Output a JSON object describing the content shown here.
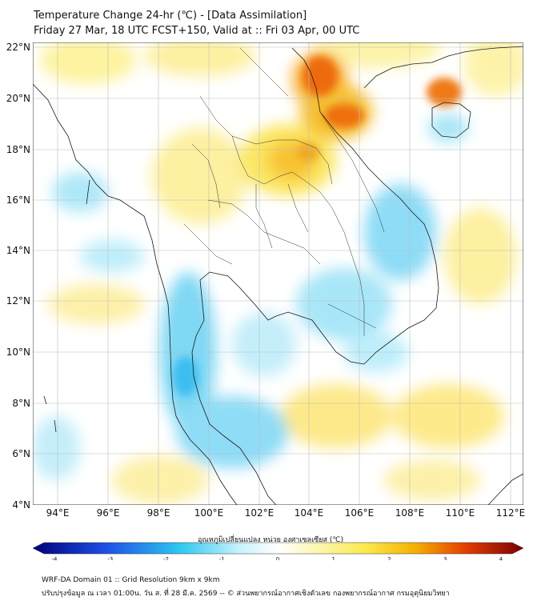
{
  "title": {
    "line1": "Temperature Change 24-hr (℃) - [Data Assimilation]",
    "line2": "Friday 27 Mar, 18 UTC FCST+150, Valid at :: Fri 03 Apr, 00 UTC"
  },
  "map": {
    "lat_labels": [
      "22°N",
      "20°N",
      "18°N",
      "16°N",
      "14°N",
      "12°N",
      "10°N",
      "8°N",
      "6°N",
      "4°N"
    ],
    "lon_labels": [
      "94°E",
      "96°E",
      "98°E",
      "100°E",
      "102°E",
      "104°E",
      "106°E",
      "108°E",
      "110°E",
      "112°E"
    ],
    "lat_range": [
      4,
      22.3
    ],
    "lon_range": [
      93,
      112.6
    ],
    "grid": true
  },
  "colorbar": {
    "title": "อุณหภูมิเปลี่ยนแปลง หน่วย องศาเซลเซียส (℃)",
    "ticks": [
      "-4",
      "-3",
      "-2",
      "-1",
      "0",
      "1",
      "2",
      "3",
      "4"
    ],
    "range": [
      -4,
      4
    ],
    "colors": {
      "neg_deep": "#00007a",
      "neg_mid": "#1e50e6",
      "neg_light": "#2ec8f0",
      "zero": "#ffffff",
      "pos_light": "#fbe94a",
      "pos_mid": "#f4b000",
      "pos_hot": "#e44000",
      "pos_deep": "#7a0000"
    }
  },
  "footer": {
    "line1": "WRF-DA Domain 01 :: Grid Resolution 9km x 9km",
    "line2": "ปรับปรุงข้อมูล ณ เวลา 01:00น. วัน ส. ที่ 28 มี.ค. 2569 -- © ส่วนพยากรณ์อากาศเชิงตัวเลข กองพยากรณ์อากาศ กรมอุตุนิยมวิทยา"
  }
}
